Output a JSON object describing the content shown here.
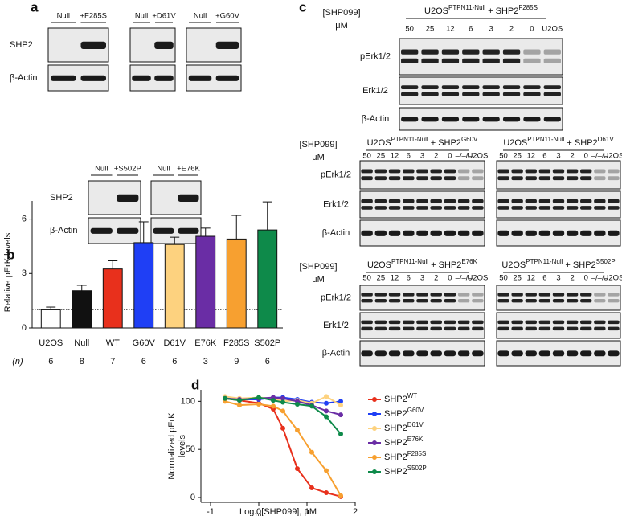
{
  "panel_a": {
    "label": "a",
    "blots": [
      {
        "lanes": [
          "Null",
          "+F285S"
        ],
        "rows": [
          "SHP2",
          "β-Actin"
        ]
      },
      {
        "lanes": [
          "Null",
          "+D61V"
        ]
      },
      {
        "lanes": [
          "Null",
          "+G60V"
        ]
      },
      {
        "lanes": [
          "Null",
          "+S502P"
        ],
        "rows": [
          "SHP2",
          "β-Actin"
        ]
      },
      {
        "lanes": [
          "Null",
          "+E76K"
        ]
      }
    ]
  },
  "panel_b": {
    "label": "b"
  },
  "panel_c": {
    "label": "c",
    "blots": [
      {
        "conc": [
          "[SHP099]",
          "μM"
        ],
        "cell": "U2OS",
        "cell_sup": "PTPN11-Null",
        "plus": " + SHP2",
        "variant": "F285S",
        "lanes": [
          "50",
          "25",
          "12",
          "6",
          "3",
          "2",
          "0",
          "U2OS"
        ],
        "rows": [
          "pErk1/2",
          "Erk1/2",
          "β-Actin"
        ]
      },
      {
        "conc": [
          "[SHP099]",
          "μM"
        ],
        "cell": "U2OS",
        "cell_sup": "PTPN11-Null",
        "plus": " + SHP2",
        "variant": "G60V",
        "lanes": [
          "50",
          "25",
          "12",
          "6",
          "3",
          "2",
          "0",
          "–/–/–",
          "U2OS"
        ],
        "rows": [
          "pErk1/2",
          "Erk1/2",
          "β-Actin"
        ]
      },
      {
        "cell": "U2OS",
        "cell_sup": "PTPN11-Null",
        "plus": " + SHP2",
        "variant": "D61V",
        "lanes": [
          "50",
          "25",
          "12",
          "6",
          "3",
          "2",
          "0",
          "–/–/–",
          "U2OS"
        ]
      },
      {
        "conc": [
          "[SHP099]",
          "μM"
        ],
        "cell": "U2OS",
        "cell_sup": "PTPN11-Null",
        "plus": " + SHP2",
        "variant": "E76K",
        "lanes": [
          "50",
          "25",
          "12",
          "6",
          "3",
          "2",
          "0",
          "–/–/–",
          "U2OS"
        ],
        "rows": [
          "pErk1/2",
          "Erk1/2",
          "β-Actin"
        ]
      },
      {
        "cell": "U2OS",
        "cell_sup": "PTPN11-Null",
        "plus": " + SHP2",
        "variant": "S502P",
        "lanes": [
          "50",
          "25",
          "12",
          "6",
          "3",
          "2",
          "0",
          "–/–/–",
          "U2OS"
        ]
      }
    ]
  },
  "panel_d": {
    "label": "d"
  },
  "chart_data": [
    {
      "type": "bar",
      "y_label": "Relative pErK levels",
      "categories": [
        "U2OS",
        "Null",
        "WT",
        "G60V",
        "D61V",
        "E76K",
        "F285S",
        "S502P"
      ],
      "values": [
        1.0,
        2.05,
        3.25,
        4.7,
        4.6,
        5.05,
        4.9,
        5.4
      ],
      "errors": [
        0.15,
        0.3,
        0.45,
        1.15,
        0.4,
        0.45,
        1.3,
        1.55
      ],
      "colors": [
        "#ffffff",
        "#111111",
        "#e8301c",
        "#1f3ff5",
        "#fdd27f",
        "#6a2da5",
        "#f7a030",
        "#0e8a4a"
      ],
      "ylim": [
        0,
        7
      ],
      "yticks": [
        0,
        3,
        6
      ],
      "reference_line": 1,
      "n_label": "(n)",
      "n": [
        "6",
        "8",
        "7",
        "6",
        "6",
        "3",
        "9",
        "6"
      ]
    },
    {
      "type": "line",
      "y_label": [
        "Normalized pErK",
        "levels"
      ],
      "x_label": {
        "base": "Log",
        "sub": "10",
        "rest": "[SHP099], μM"
      },
      "x": [
        -0.7,
        -0.4,
        0,
        0.3,
        0.5,
        0.8,
        1.1,
        1.4,
        1.7
      ],
      "series": [
        {
          "name": "SHP2",
          "sup": "WT",
          "color": "#e8301c",
          "values": [
            103,
            101,
            98,
            92,
            72,
            30,
            10,
            5,
            1
          ]
        },
        {
          "name": "SHP2",
          "sup": "G60V",
          "color": "#1f3ff5",
          "values": [
            104,
            102,
            102,
            104,
            104,
            102,
            99,
            98,
            100
          ]
        },
        {
          "name": "SHP2",
          "sup": "D61V",
          "color": "#fdd27f",
          "values": [
            105,
            103,
            104,
            103,
            100,
            101,
            98,
            105,
            96
          ]
        },
        {
          "name": "SHP2",
          "sup": "E76K",
          "color": "#6a2da5",
          "values": [
            103,
            102,
            103,
            104,
            103,
            100,
            96,
            90,
            86
          ]
        },
        {
          "name": "SHP2",
          "sup": "F285S",
          "color": "#f7a030",
          "values": [
            100,
            96,
            97,
            95,
            90,
            70,
            47,
            28,
            2
          ]
        },
        {
          "name": "SHP2",
          "sup": "S502P",
          "color": "#0e8a4a",
          "values": [
            103,
            101,
            104,
            101,
            99,
            97,
            95,
            84,
            66
          ]
        }
      ],
      "xlim": [
        -1.2,
        2
      ],
      "xticks": [
        -1,
        0,
        1,
        2
      ],
      "ylim": [
        -5,
        112
      ],
      "yticks": [
        0,
        50,
        100
      ]
    }
  ]
}
